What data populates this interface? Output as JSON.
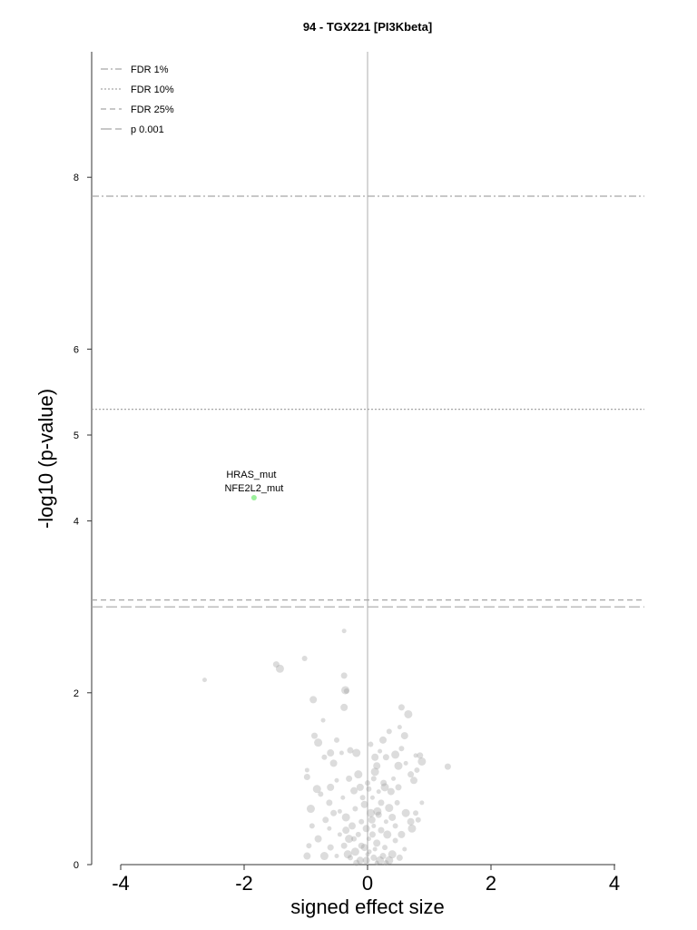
{
  "chart_data": {
    "type": "scatter",
    "title": "94 - TGX221 [PI3Kbeta]",
    "xlabel": "signed effect size",
    "ylabel": "-log10 (p-value)",
    "xlim": [
      -4.5,
      4.5
    ],
    "ylim": [
      0,
      9.5
    ],
    "x_ticks": [
      -4,
      -2,
      0,
      2,
      4
    ],
    "y_ticks": [
      0,
      2,
      4,
      5,
      6,
      8
    ],
    "legend_position": "top-left",
    "colors": {
      "grey_point": "#9a9a9a",
      "highlight_point": "#90ee90",
      "zero_line": "#c8c8c8",
      "threshold_line": "#a6a6a6"
    },
    "thresholds": [
      {
        "name": "FDR 1%",
        "y": 7.78,
        "dash": "8 3 2 3"
      },
      {
        "name": "FDR 10%",
        "y": 5.3,
        "dash": "2 2"
      },
      {
        "name": "FDR 25%",
        "y": 3.08,
        "dash": "6 4"
      },
      {
        "name": "p 0.001",
        "y": 3.0,
        "dash": "12 4"
      }
    ],
    "annotations": [
      {
        "text": "HRAS_mut",
        "x": -1.84,
        "y": 4.27
      },
      {
        "text": "NFE2L2_mut",
        "x": -1.84,
        "y": 4.27
      }
    ],
    "highlight_points": [
      {
        "x": -1.84,
        "y": 4.27
      }
    ],
    "points": [
      [
        -2.64,
        2.15
      ],
      [
        -1.48,
        2.33
      ],
      [
        -1.42,
        2.28
      ],
      [
        -1.02,
        2.4
      ],
      [
        -0.88,
        1.92
      ],
      [
        -0.38,
        2.72
      ],
      [
        -0.38,
        2.2
      ],
      [
        -0.36,
        2.03
      ],
      [
        -0.34,
        2.02
      ],
      [
        -0.38,
        1.83
      ],
      [
        -0.72,
        1.68
      ],
      [
        -0.86,
        1.5
      ],
      [
        -0.8,
        1.42
      ],
      [
        -0.5,
        1.45
      ],
      [
        -0.6,
        1.3
      ],
      [
        -0.42,
        1.3
      ],
      [
        -0.28,
        1.33
      ],
      [
        -0.18,
        1.3
      ],
      [
        0.05,
        1.4
      ],
      [
        0.12,
        1.25
      ],
      [
        0.2,
        1.32
      ],
      [
        0.3,
        1.25
      ],
      [
        0.45,
        1.28
      ],
      [
        0.55,
        1.35
      ],
      [
        0.6,
        1.5
      ],
      [
        0.52,
        1.6
      ],
      [
        0.55,
        1.83
      ],
      [
        0.66,
        1.75
      ],
      [
        0.35,
        1.55
      ],
      [
        0.25,
        1.45
      ],
      [
        0.78,
        1.27
      ],
      [
        0.85,
        1.27
      ],
      [
        0.88,
        1.2
      ],
      [
        0.8,
        1.1
      ],
      [
        0.75,
        0.98
      ],
      [
        0.88,
        0.72
      ],
      [
        1.3,
        1.14
      ],
      [
        0.62,
        0.6
      ],
      [
        0.78,
        0.6
      ],
      [
        0.7,
        0.5
      ],
      [
        -0.98,
        1.1
      ],
      [
        -0.98,
        1.02
      ],
      [
        -0.82,
        0.88
      ],
      [
        -0.76,
        0.82
      ],
      [
        -0.6,
        0.9
      ],
      [
        -0.5,
        0.98
      ],
      [
        -0.3,
        1.0
      ],
      [
        -0.15,
        1.05
      ],
      [
        0.1,
        1.0
      ],
      [
        0.15,
        1.15
      ],
      [
        0.42,
        1.0
      ],
      [
        0.5,
        0.9
      ],
      [
        0.28,
        0.9
      ],
      [
        0.02,
        0.88
      ],
      [
        -0.22,
        0.86
      ],
      [
        -0.4,
        0.78
      ],
      [
        -0.62,
        0.72
      ],
      [
        -0.92,
        0.65
      ],
      [
        -0.9,
        0.45
      ],
      [
        -0.8,
        0.3
      ],
      [
        -0.62,
        0.42
      ],
      [
        -0.55,
        0.6
      ],
      [
        -0.35,
        0.55
      ],
      [
        -0.2,
        0.65
      ],
      [
        -0.05,
        0.7
      ],
      [
        0.08,
        0.78
      ],
      [
        0.22,
        0.72
      ],
      [
        0.35,
        0.66
      ],
      [
        0.48,
        0.72
      ],
      [
        0.4,
        0.55
      ],
      [
        0.3,
        0.5
      ],
      [
        0.18,
        0.58
      ],
      [
        0.05,
        0.6
      ],
      [
        -0.1,
        0.5
      ],
      [
        -0.25,
        0.45
      ],
      [
        -0.45,
        0.35
      ],
      [
        -0.6,
        0.2
      ],
      [
        -0.7,
        0.1
      ],
      [
        -0.95,
        0.22
      ],
      [
        -0.98,
        0.1
      ],
      [
        -0.5,
        0.1
      ],
      [
        -0.38,
        0.22
      ],
      [
        -0.3,
        0.3
      ],
      [
        -0.15,
        0.35
      ],
      [
        -0.02,
        0.42
      ],
      [
        0.1,
        0.45
      ],
      [
        0.22,
        0.4
      ],
      [
        0.32,
        0.35
      ],
      [
        0.45,
        0.28
      ],
      [
        0.55,
        0.35
      ],
      [
        0.6,
        0.18
      ],
      [
        0.52,
        0.08
      ],
      [
        0.4,
        0.12
      ],
      [
        0.28,
        0.2
      ],
      [
        0.15,
        0.25
      ],
      [
        0.02,
        0.3
      ],
      [
        -0.1,
        0.22
      ],
      [
        -0.2,
        0.15
      ],
      [
        -0.28,
        0.08
      ],
      [
        -0.12,
        0.05
      ],
      [
        0.0,
        0.12
      ],
      [
        0.1,
        0.08
      ],
      [
        0.2,
        0.05
      ],
      [
        0.3,
        0.02
      ],
      [
        -0.05,
        0.2
      ],
      [
        0.12,
        0.18
      ],
      [
        0.25,
        0.1
      ],
      [
        -0.32,
        0.12
      ],
      [
        -0.22,
        0.3
      ],
      [
        0.07,
        0.52
      ],
      [
        0.18,
        0.85
      ],
      [
        0.26,
        0.95
      ],
      [
        0.12,
        1.08
      ],
      [
        0.0,
        0.95
      ],
      [
        -0.12,
        0.9
      ],
      [
        0.62,
        1.18
      ],
      [
        0.7,
        1.05
      ],
      [
        0.5,
        1.15
      ],
      [
        -0.7,
        1.25
      ],
      [
        -0.55,
        1.18
      ],
      [
        0.03,
        0.15
      ],
      [
        0.08,
        0.35
      ],
      [
        0.16,
        0.62
      ],
      [
        -0.08,
        0.78
      ],
      [
        0.38,
        0.85
      ],
      [
        -0.45,
        0.62
      ],
      [
        -0.68,
        0.52
      ],
      [
        0.72,
        0.42
      ],
      [
        0.82,
        0.52
      ],
      [
        -0.02,
        0.05
      ],
      [
        0.15,
        0.02
      ],
      [
        -0.18,
        0.02
      ],
      [
        0.35,
        0.05
      ],
      [
        0.45,
        0.45
      ],
      [
        -0.35,
        0.4
      ]
    ]
  }
}
